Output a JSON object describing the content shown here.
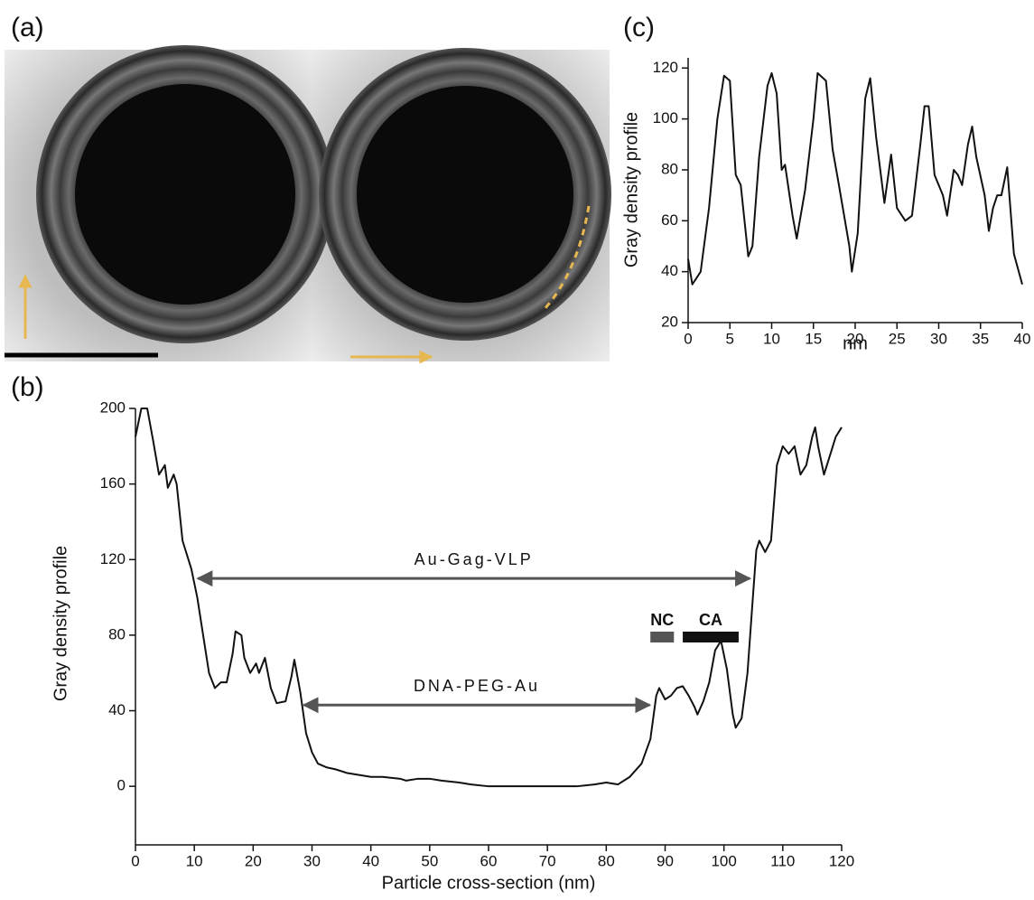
{
  "image_panel": {
    "label": "(a)"
  },
  "chart_data": [
    {
      "type": "line",
      "panel_label": "(b)",
      "y_label": "Gray density profile",
      "x_label": "Particle cross-section (nm)",
      "color": "#111111",
      "x": [
        0,
        1,
        2,
        3,
        4,
        5,
        5.5,
        6.5,
        7,
        8,
        9.5,
        10.5,
        11.5,
        12.5,
        13.5,
        14.5,
        15.5,
        16.5,
        17,
        18,
        18.5,
        19.5,
        20.5,
        21,
        22,
        23,
        24,
        25.5,
        26.5,
        27,
        28,
        29,
        30,
        31,
        32.5,
        34,
        36,
        38,
        40,
        42,
        45,
        46,
        48,
        50,
        52,
        55,
        57,
        60,
        65,
        70,
        75,
        78,
        80,
        82,
        84,
        86,
        87.5,
        88.5,
        89,
        90,
        91,
        92,
        93,
        94,
        95,
        95.5,
        96.5,
        97.5,
        98.5,
        99.5,
        100.5,
        101.5,
        102,
        103,
        104,
        104.8,
        105.5,
        106,
        107,
        108,
        109,
        110,
        111,
        112,
        113,
        114,
        115,
        115.5,
        116,
        117,
        118,
        119,
        120
      ],
      "values": [
        185,
        200,
        200,
        183,
        165,
        170,
        158,
        165,
        160,
        130,
        115,
        100,
        80,
        60,
        52,
        55,
        55,
        70,
        82,
        80,
        68,
        60,
        65,
        60,
        68,
        52,
        44,
        45,
        58,
        67,
        50,
        28,
        18,
        12,
        10,
        9,
        7,
        6,
        5,
        5,
        4,
        3,
        4,
        4,
        3,
        2,
        1,
        0,
        0,
        0,
        0,
        1,
        2,
        1,
        5,
        12,
        25,
        48,
        52,
        46,
        48,
        52,
        53,
        48,
        42,
        38,
        45,
        55,
        72,
        77,
        62,
        38,
        31,
        36,
        60,
        95,
        125,
        130,
        124,
        130,
        170,
        180,
        176,
        180,
        165,
        170,
        185,
        190,
        180,
        165,
        175,
        185,
        190
      ],
      "xlim": [
        0,
        120
      ],
      "xticks": [
        0,
        10,
        20,
        30,
        40,
        50,
        60,
        70,
        80,
        90,
        100,
        110,
        120
      ],
      "ylim": [
        -31,
        200
      ],
      "yticks": [
        0,
        40,
        80,
        120,
        160,
        200
      ],
      "annotations": [
        {
          "text": "Au-Gag-VLP",
          "style": "double-arrow",
          "x": [
            10,
            105
          ],
          "y": 110,
          "color": "#555555"
        },
        {
          "text": "DNA-PEG-Au",
          "style": "double-arrow",
          "x": [
            28,
            88
          ],
          "y": 43,
          "color": "#555555"
        },
        {
          "text": "NC",
          "style": "bar",
          "x": [
            87.5,
            91.5
          ],
          "y": 79,
          "color": "#555555"
        },
        {
          "text": "CA",
          "style": "bar",
          "x": [
            93,
            102.5
          ],
          "y": 79,
          "color": "#111111"
        }
      ]
    },
    {
      "type": "line",
      "panel_label": "(c)",
      "y_label": "Gray density profile",
      "x_label": "nm",
      "color": "#111111",
      "x": [
        0,
        0.5,
        1.5,
        2.5,
        3.5,
        4.3,
        5,
        5.7,
        6.3,
        7.2,
        7.7,
        8.5,
        9.5,
        10,
        10.6,
        11.2,
        11.6,
        12.5,
        13,
        14,
        15,
        15.5,
        16.5,
        17.3,
        18,
        19.3,
        19.6,
        20.3,
        21.2,
        21.8,
        22.5,
        23.5,
        24.3,
        25,
        26,
        26.8,
        27.8,
        28.3,
        28.8,
        29.5,
        30.5,
        31,
        31.8,
        32.3,
        32.8,
        33.5,
        34,
        34.5,
        35.5,
        36,
        36.5,
        37,
        37.5,
        38.2,
        39,
        40
      ],
      "values": [
        45,
        35,
        40,
        65,
        100,
        117,
        115,
        78,
        74,
        46,
        50,
        85,
        113,
        118,
        110,
        80,
        82,
        62,
        53,
        72,
        100,
        118,
        115,
        88,
        75,
        50,
        40,
        55,
        108,
        116,
        93,
        67,
        86,
        65,
        60,
        62,
        90,
        105,
        105,
        78,
        70,
        62,
        80,
        78,
        74,
        90,
        97,
        85,
        70,
        56,
        65,
        70,
        70,
        81,
        47,
        35
      ],
      "xlim": [
        0,
        40
      ],
      "xticks": [
        0,
        5,
        10,
        15,
        20,
        25,
        30,
        35,
        40
      ],
      "ylim": [
        20,
        124
      ],
      "yticks": [
        20,
        40,
        60,
        80,
        100,
        120
      ]
    }
  ]
}
